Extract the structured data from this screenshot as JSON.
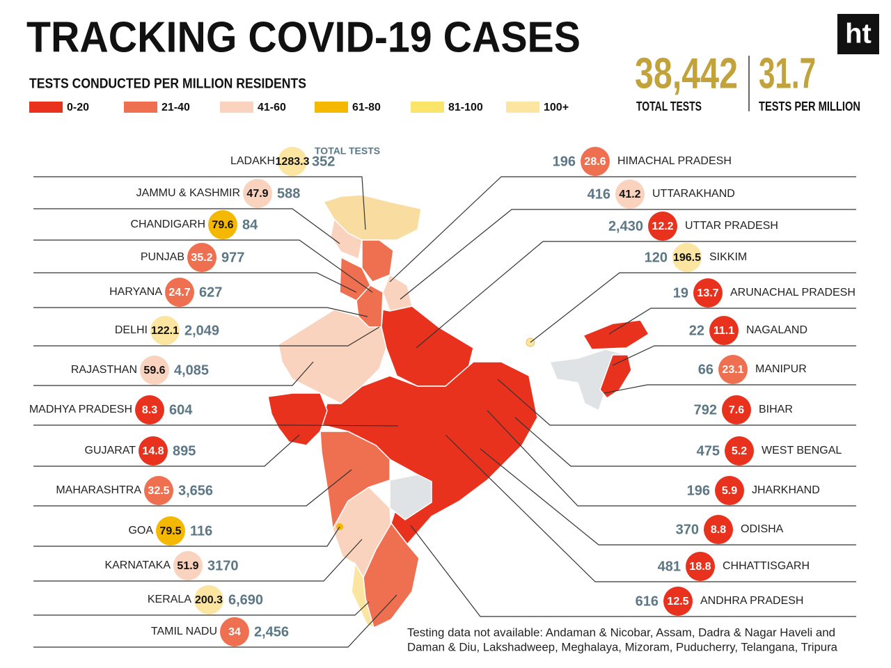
{
  "header": {
    "title": "TRACKING COVID-19 CASES",
    "subtitle": "TESTS CONDUCTED PER MILLION RESIDENTS",
    "logo": "ht",
    "legend": [
      {
        "label": "0-20",
        "color": "#e8321e"
      },
      {
        "label": "21-40",
        "color": "#ee7051"
      },
      {
        "label": "41-60",
        "color": "#f9d3bd"
      },
      {
        "label": "61-80",
        "color": "#f5b800"
      },
      {
        "label": "81-100",
        "color": "#fbe46a"
      },
      {
        "label": "100+",
        "color": "#fbe5a0"
      }
    ],
    "total_tests": {
      "value": "38,442",
      "label": "TOTAL TESTS"
    },
    "tests_per_million": {
      "value": "31.7",
      "label": "TESTS PER MILLION"
    }
  },
  "total_tests_note": "TOTAL TESTS",
  "left_states": [
    {
      "name": "LADAKH",
      "per_million": "1283.3",
      "tests": "352",
      "color": "#fbe5a0"
    },
    {
      "name": "JAMMU & KASHMIR",
      "per_million": "47.9",
      "tests": "588",
      "color": "#f9d3bd"
    },
    {
      "name": "CHANDIGARH",
      "per_million": "79.6",
      "tests": "84",
      "color": "#f5b800"
    },
    {
      "name": "PUNJAB",
      "per_million": "35.2",
      "tests": "977",
      "color": "#ee7051"
    },
    {
      "name": "HARYANA",
      "per_million": "24.7",
      "tests": "627",
      "color": "#ee7051"
    },
    {
      "name": "DELHI",
      "per_million": "122.1",
      "tests": "2,049",
      "color": "#fbe5a0"
    },
    {
      "name": "RAJASTHAN",
      "per_million": "59.6",
      "tests": "4,085",
      "color": "#f9d3bd"
    },
    {
      "name": "MADHYA PRADESH",
      "per_million": "8.3",
      "tests": "604",
      "color": "#e8321e"
    },
    {
      "name": "GUJARAT",
      "per_million": "14.8",
      "tests": "895",
      "color": "#e8321e"
    },
    {
      "name": "MAHARASHTRA",
      "per_million": "32.5",
      "tests": "3,656",
      "color": "#ee7051"
    },
    {
      "name": "GOA",
      "per_million": "79.5",
      "tests": "116",
      "color": "#f5b800"
    },
    {
      "name": "KARNATAKA",
      "per_million": "51.9",
      "tests": "3170",
      "color": "#f9d3bd"
    },
    {
      "name": "KERALA",
      "per_million": "200.3",
      "tests": "6,690",
      "color": "#fbe5a0"
    },
    {
      "name": "TAMIL NADU",
      "per_million": "34",
      "tests": "2,456",
      "color": "#ee7051"
    }
  ],
  "right_states": [
    {
      "name": "HIMACHAL PRADESH",
      "per_million": "28.6",
      "tests": "196",
      "color": "#ee7051"
    },
    {
      "name": "UTTARAKHAND",
      "per_million": "41.2",
      "tests": "416",
      "color": "#f9d3bd"
    },
    {
      "name": "UTTAR PRADESH",
      "per_million": "12.2",
      "tests": "2,430",
      "color": "#e8321e"
    },
    {
      "name": "SIKKIM",
      "per_million": "196.5",
      "tests": "120",
      "color": "#fbe5a0"
    },
    {
      "name": "ARUNACHAL PRADESH",
      "per_million": "13.7",
      "tests": "19",
      "color": "#e8321e"
    },
    {
      "name": "NAGALAND",
      "per_million": "11.1",
      "tests": "22",
      "color": "#e8321e"
    },
    {
      "name": "MANIPUR",
      "per_million": "23.1",
      "tests": "66",
      "color": "#ee7051"
    },
    {
      "name": "BIHAR",
      "per_million": "7.6",
      "tests": "792",
      "color": "#e8321e"
    },
    {
      "name": "WEST BENGAL",
      "per_million": "5.2",
      "tests": "475",
      "color": "#e8321e"
    },
    {
      "name": "JHARKHAND",
      "per_million": "5.9",
      "tests": "196",
      "color": "#e8321e"
    },
    {
      "name": "ODISHA",
      "per_million": "8.8",
      "tests": "370",
      "color": "#e8321e"
    },
    {
      "name": "CHHATTISGARH",
      "per_million": "18.8",
      "tests": "481",
      "color": "#e8321e"
    },
    {
      "name": "ANDHRA PRADESH",
      "per_million": "12.5",
      "tests": "616",
      "color": "#e8321e"
    }
  ],
  "footnote": [
    "Testing data not available: Andaman & Nicobar, Assam, Dadra & Nagar Haveli and",
    "Daman & Diu, Lakshadweep, Meghalaya, Mizoram, Puducherry, Telangana, Tripura"
  ]
}
